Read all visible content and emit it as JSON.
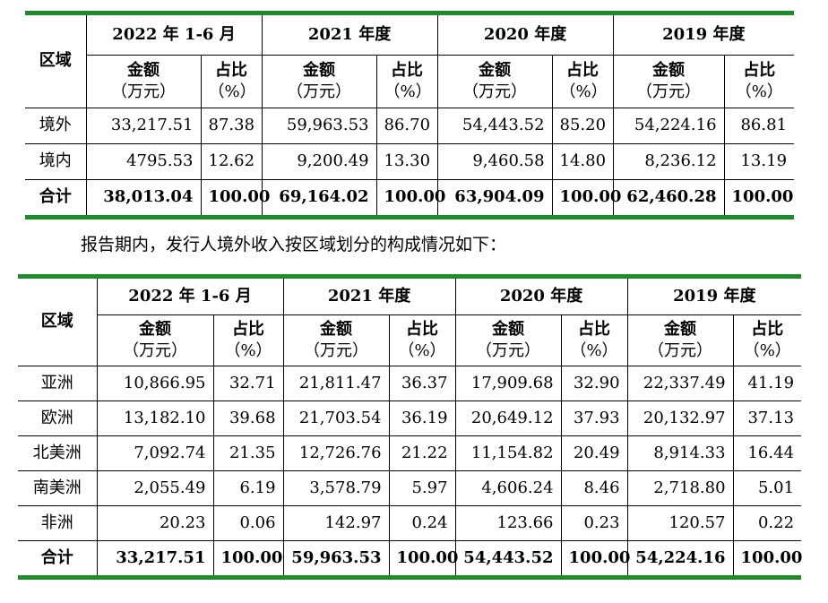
{
  "table1": {
    "region_label": "区域",
    "periods": [
      "2022 年 1-6 月",
      "2021 年度",
      "2020 年度",
      "2019 年度"
    ],
    "amount_label": "金额",
    "amount_unit": "（万元）",
    "ratio_label": "占比",
    "ratio_unit": "（%）",
    "rows": [
      {
        "name": "境外",
        "cells": [
          "33,217.51",
          "87.38",
          "59,963.53",
          "86.70",
          "54,443.52",
          "85.20",
          "54,224.16",
          "86.81"
        ]
      },
      {
        "name": "境内",
        "cells": [
          "4795.53",
          "12.62",
          "9,200.49",
          "13.30",
          "9,460.58",
          "14.80",
          "8,236.12",
          "13.19"
        ]
      },
      {
        "name": "合计",
        "cells": [
          "38,013.04",
          "100.00",
          "69,164.02",
          "100.00",
          "63,904.09",
          "100.00",
          "62,460.28",
          "100.00"
        ]
      }
    ]
  },
  "paragraph": "报告期内，发行人境外收入按区域划分的构成情况如下：",
  "table2": {
    "region_label": "区域",
    "periods": [
      "2022 年 1-6 月",
      "2021 年度",
      "2020 年度",
      "2019 年度"
    ],
    "amount_label": "金额",
    "amount_unit": "（万元）",
    "ratio_label": "占比",
    "ratio_unit": "（%）",
    "rows": [
      {
        "name": "亚洲",
        "cells": [
          "10,866.95",
          "32.71",
          "21,811.47",
          "36.37",
          "17,909.68",
          "32.90",
          "22,337.49",
          "41.19"
        ]
      },
      {
        "name": "欧洲",
        "cells": [
          "13,182.10",
          "39.68",
          "21,703.54",
          "36.19",
          "20,649.12",
          "37.93",
          "20,132.97",
          "37.13"
        ]
      },
      {
        "name": "北美洲",
        "cells": [
          "7,092.74",
          "21.35",
          "12,726.76",
          "21.22",
          "11,154.82",
          "20.49",
          "8,914.33",
          "16.44"
        ]
      },
      {
        "name": "南美洲",
        "cells": [
          "2,055.49",
          "6.19",
          "3,578.79",
          "5.97",
          "4,606.24",
          "8.46",
          "2,718.80",
          "5.01"
        ]
      },
      {
        "name": "非洲",
        "cells": [
          "20.23",
          "0.06",
          "142.97",
          "0.24",
          "123.66",
          "0.23",
          "120.57",
          "0.22"
        ]
      },
      {
        "name": "合计",
        "cells": [
          "33,217.51",
          "100.00",
          "59,963.53",
          "100.00",
          "54,443.52",
          "100.00",
          "54,224.16",
          "100.00"
        ]
      }
    ]
  },
  "colors": {
    "rule_green": "#1e8c2a"
  }
}
